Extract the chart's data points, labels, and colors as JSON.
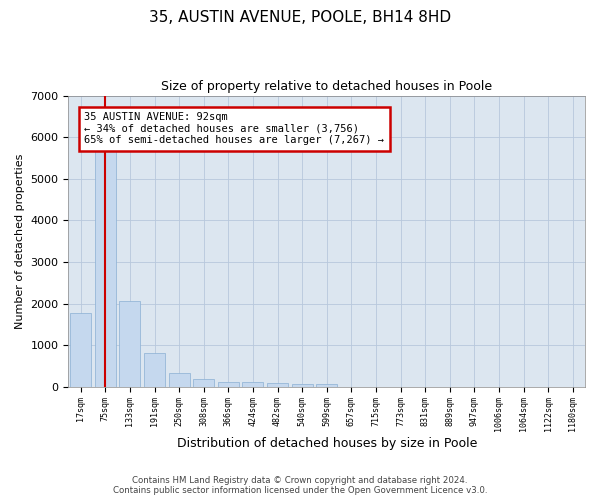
{
  "title": "35, AUSTIN AVENUE, POOLE, BH14 8HD",
  "subtitle": "Size of property relative to detached houses in Poole",
  "xlabel": "Distribution of detached houses by size in Poole",
  "ylabel": "Number of detached properties",
  "bin_labels": [
    "17sqm",
    "75sqm",
    "133sqm",
    "191sqm",
    "250sqm",
    "308sqm",
    "366sqm",
    "424sqm",
    "482sqm",
    "540sqm",
    "599sqm",
    "657sqm",
    "715sqm",
    "773sqm",
    "831sqm",
    "889sqm",
    "947sqm",
    "1006sqm",
    "1064sqm",
    "1122sqm",
    "1180sqm"
  ],
  "bar_heights": [
    1780,
    5780,
    2060,
    820,
    340,
    190,
    125,
    110,
    100,
    75,
    70,
    0,
    0,
    0,
    0,
    0,
    0,
    0,
    0,
    0,
    0
  ],
  "bar_color": "#c5d8ee",
  "bar_edgecolor": "#8ab0d4",
  "red_line_x": 1,
  "annotation_text": "35 AUSTIN AVENUE: 92sqm\n← 34% of detached houses are smaller (3,756)\n65% of semi-detached houses are larger (7,267) →",
  "annotation_box_color": "#ffffff",
  "annotation_box_edgecolor": "#cc0000",
  "ylim": [
    0,
    7000
  ],
  "plot_background_color": "#dce6f0",
  "footer_line1": "Contains HM Land Registry data © Crown copyright and database right 2024.",
  "footer_line2": "Contains public sector information licensed under the Open Government Licence v3.0."
}
